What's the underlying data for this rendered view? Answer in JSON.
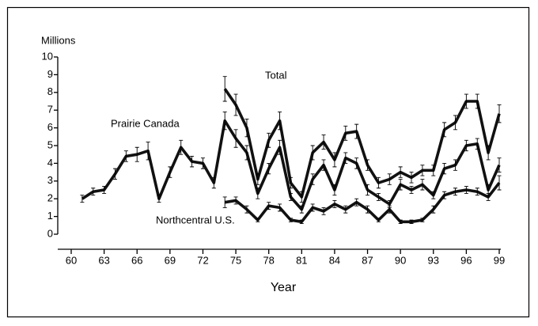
{
  "chart_data": {
    "type": "line",
    "y_label": "Millions",
    "x_label": "Year",
    "x": [
      61,
      62,
      63,
      64,
      65,
      66,
      67,
      68,
      69,
      70,
      71,
      72,
      73,
      74,
      75,
      76,
      77,
      78,
      79,
      80,
      81,
      82,
      83,
      84,
      85,
      86,
      87,
      88,
      89,
      90,
      91,
      92,
      93,
      94,
      95,
      96,
      97,
      98,
      99
    ],
    "series": [
      {
        "name": "Prairie Canada",
        "color": "#111111",
        "values": [
          2.0,
          2.4,
          2.5,
          3.4,
          4.4,
          4.5,
          4.7,
          2.0,
          3.5,
          4.9,
          4.1,
          4.0,
          2.9,
          6.4,
          5.4,
          4.6,
          2.3,
          3.7,
          4.9,
          2.1,
          1.4,
          3.1,
          3.9,
          2.5,
          4.3,
          4.0,
          2.5,
          2.1,
          1.7,
          2.8,
          2.5,
          2.8,
          2.2,
          3.7,
          3.9,
          5.0,
          5.1,
          2.5,
          3.9
        ],
        "errors": [
          0.2,
          0.2,
          0.2,
          0.3,
          0.3,
          0.4,
          0.5,
          0.2,
          0.3,
          0.4,
          0.3,
          0.3,
          0.3,
          0.5,
          0.5,
          0.4,
          0.3,
          0.3,
          0.4,
          0.2,
          0.2,
          0.3,
          0.3,
          0.3,
          0.3,
          0.3,
          0.3,
          0.2,
          0.2,
          0.3,
          0.2,
          0.3,
          0.2,
          0.3,
          0.3,
          0.3,
          0.3,
          0.3,
          0.4
        ]
      },
      {
        "name": "Total",
        "color": "#111111",
        "values": [
          null,
          null,
          null,
          null,
          null,
          null,
          null,
          null,
          null,
          null,
          null,
          null,
          null,
          8.2,
          7.3,
          6.0,
          3.1,
          5.3,
          6.4,
          2.9,
          2.1,
          4.6,
          5.2,
          4.2,
          5.7,
          5.8,
          3.9,
          2.9,
          3.1,
          3.5,
          3.2,
          3.6,
          3.6,
          5.9,
          6.3,
          7.5,
          7.5,
          4.6,
          6.8
        ],
        "errors": [
          null,
          null,
          null,
          null,
          null,
          null,
          null,
          null,
          null,
          null,
          null,
          null,
          null,
          0.7,
          0.6,
          0.5,
          0.3,
          0.4,
          0.5,
          0.3,
          0.3,
          0.4,
          0.4,
          0.4,
          0.4,
          0.4,
          0.3,
          0.3,
          0.3,
          0.3,
          0.3,
          0.3,
          0.3,
          0.4,
          0.4,
          0.4,
          0.4,
          0.4,
          0.5
        ]
      },
      {
        "name": "Northcentral U.S.",
        "color": "#111111",
        "values": [
          null,
          null,
          null,
          null,
          null,
          null,
          null,
          null,
          null,
          null,
          null,
          null,
          null,
          1.8,
          1.9,
          1.4,
          0.8,
          1.6,
          1.5,
          0.8,
          0.7,
          1.5,
          1.3,
          1.7,
          1.4,
          1.8,
          1.4,
          0.8,
          1.4,
          0.7,
          0.7,
          0.8,
          1.4,
          2.2,
          2.4,
          2.5,
          2.4,
          2.1,
          2.9
        ],
        "errors": [
          null,
          null,
          null,
          null,
          null,
          null,
          null,
          null,
          null,
          null,
          null,
          null,
          null,
          0.3,
          0.2,
          0.2,
          0.1,
          0.2,
          0.2,
          0.1,
          0.1,
          0.2,
          0.2,
          0.2,
          0.2,
          0.2,
          0.2,
          0.1,
          0.2,
          0.1,
          0.1,
          0.1,
          0.2,
          0.2,
          0.2,
          0.2,
          0.2,
          0.2,
          0.4
        ]
      }
    ],
    "xlim": [
      60,
      99
    ],
    "xticks": [
      60,
      63,
      66,
      69,
      72,
      75,
      78,
      81,
      84,
      87,
      90,
      93,
      96,
      99
    ],
    "ylim": [
      0,
      10
    ],
    "yticks": [
      0,
      1,
      2,
      3,
      4,
      5,
      6,
      7,
      8,
      9,
      10
    ],
    "grid": false
  }
}
